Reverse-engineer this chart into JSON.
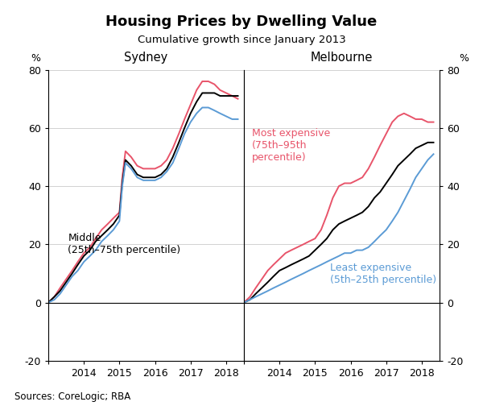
{
  "title": "Housing Prices by Dwelling Value",
  "subtitle": "Cumulative growth since January 2013",
  "source": "Sources: CoreLogic; RBA",
  "ylim": [
    -20,
    80
  ],
  "yticks": [
    -20,
    0,
    20,
    40,
    60,
    80
  ],
  "colors": {
    "most_expensive": "#e8546a",
    "middle": "#000000",
    "least_expensive": "#5b9bd5"
  },
  "sydney_label": "Sydney",
  "melbourne_label": "Melbourne",
  "sydney_middle_label": "Middle\n(25th–75th percentile)",
  "melbourne_most_label": "Most expensive\n(75th–95th\npercentile)",
  "melbourne_least_label": "Least expensive\n(5th–25th percentile)",
  "sydney_x": [
    2013.0,
    2013.17,
    2013.33,
    2013.5,
    2013.67,
    2013.83,
    2014.0,
    2014.17,
    2014.33,
    2014.5,
    2014.67,
    2014.83,
    2015.0,
    2015.08,
    2015.17,
    2015.33,
    2015.5,
    2015.67,
    2015.83,
    2016.0,
    2016.17,
    2016.33,
    2016.5,
    2016.67,
    2016.83,
    2017.0,
    2017.17,
    2017.33,
    2017.5,
    2017.67,
    2017.83,
    2018.0,
    2018.17,
    2018.33
  ],
  "sydney_most": [
    0,
    2,
    5,
    8,
    11,
    14,
    17,
    19,
    22,
    25,
    27,
    29,
    31,
    43,
    52,
    50,
    47,
    46,
    46,
    46,
    47,
    49,
    53,
    58,
    63,
    68,
    73,
    76,
    76,
    75,
    73,
    72,
    71,
    70
  ],
  "sydney_middle": [
    0,
    2,
    4,
    7,
    10,
    13,
    16,
    18,
    21,
    23,
    25,
    27,
    30,
    41,
    49,
    47,
    44,
    43,
    43,
    43,
    44,
    46,
    50,
    55,
    60,
    65,
    69,
    72,
    72,
    72,
    71,
    71,
    71,
    71
  ],
  "sydney_least": [
    0,
    1,
    3,
    6,
    9,
    11,
    14,
    16,
    18,
    21,
    23,
    25,
    28,
    40,
    48,
    46,
    43,
    42,
    42,
    42,
    43,
    45,
    48,
    53,
    58,
    62,
    65,
    67,
    67,
    66,
    65,
    64,
    63,
    63
  ],
  "melbourne_x": [
    2013.0,
    2013.17,
    2013.33,
    2013.5,
    2013.67,
    2013.83,
    2014.0,
    2014.17,
    2014.33,
    2014.5,
    2014.67,
    2014.83,
    2015.0,
    2015.17,
    2015.33,
    2015.5,
    2015.67,
    2015.83,
    2016.0,
    2016.17,
    2016.33,
    2016.5,
    2016.67,
    2016.83,
    2017.0,
    2017.17,
    2017.33,
    2017.5,
    2017.67,
    2017.83,
    2018.0,
    2018.17,
    2018.33
  ],
  "melbourne_most": [
    0,
    2,
    5,
    8,
    11,
    13,
    15,
    17,
    18,
    19,
    20,
    21,
    22,
    25,
    30,
    36,
    40,
    41,
    41,
    42,
    43,
    46,
    50,
    54,
    58,
    62,
    64,
    65,
    64,
    63,
    63,
    62,
    62
  ],
  "melbourne_middle": [
    0,
    1,
    3,
    5,
    7,
    9,
    11,
    12,
    13,
    14,
    15,
    16,
    18,
    20,
    22,
    25,
    27,
    28,
    29,
    30,
    31,
    33,
    36,
    38,
    41,
    44,
    47,
    49,
    51,
    53,
    54,
    55,
    55
  ],
  "melbourne_least": [
    0,
    1,
    2,
    3,
    4,
    5,
    6,
    7,
    8,
    9,
    10,
    11,
    12,
    13,
    14,
    15,
    16,
    17,
    17,
    18,
    18,
    19,
    21,
    23,
    25,
    28,
    31,
    35,
    39,
    43,
    46,
    49,
    51
  ]
}
